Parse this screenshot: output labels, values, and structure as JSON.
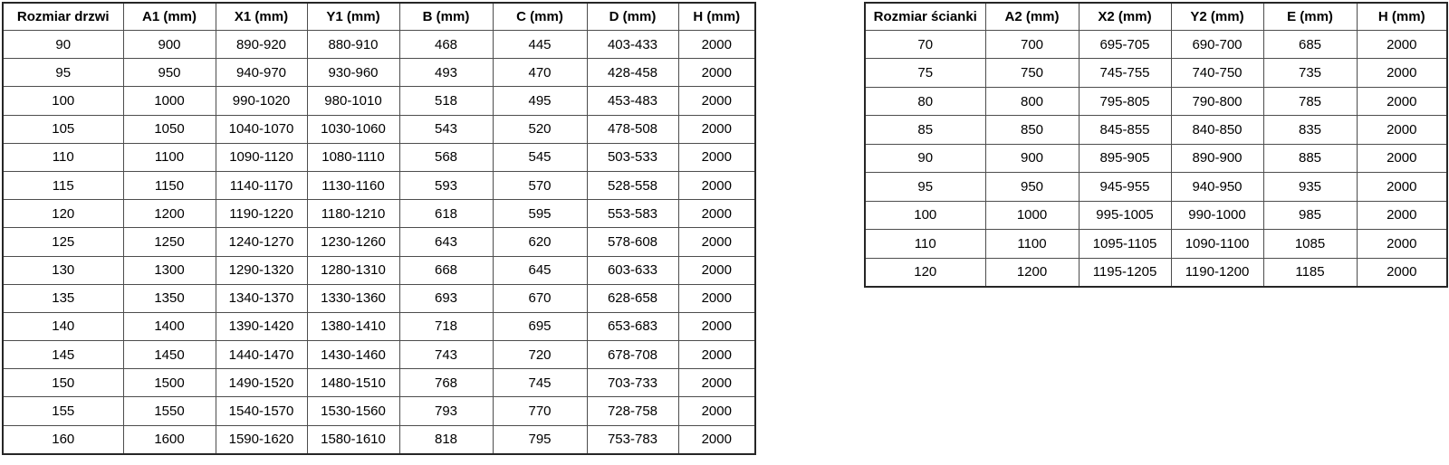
{
  "page": {
    "background_color": "#ffffff",
    "border_color": "#4d4d4d",
    "text_color": "#000000"
  },
  "tables": [
    {
      "name": "door-size-table",
      "headers": [
        "Rozmiar drzwi",
        "A1 (mm)",
        "X1 (mm)",
        "Y1 (mm)",
        "B (mm)",
        "C (mm)",
        "D (mm)",
        "H (mm)"
      ],
      "rows": [
        [
          "90",
          "900",
          "890-920",
          "880-910",
          "468",
          "445",
          "403-433",
          "2000"
        ],
        [
          "95",
          "950",
          "940-970",
          "930-960",
          "493",
          "470",
          "428-458",
          "2000"
        ],
        [
          "100",
          "1000",
          "990-1020",
          "980-1010",
          "518",
          "495",
          "453-483",
          "2000"
        ],
        [
          "105",
          "1050",
          "1040-1070",
          "1030-1060",
          "543",
          "520",
          "478-508",
          "2000"
        ],
        [
          "110",
          "1100",
          "1090-1120",
          "1080-1110",
          "568",
          "545",
          "503-533",
          "2000"
        ],
        [
          "115",
          "1150",
          "1140-1170",
          "1130-1160",
          "593",
          "570",
          "528-558",
          "2000"
        ],
        [
          "120",
          "1200",
          "1190-1220",
          "1180-1210",
          "618",
          "595",
          "553-583",
          "2000"
        ],
        [
          "125",
          "1250",
          "1240-1270",
          "1230-1260",
          "643",
          "620",
          "578-608",
          "2000"
        ],
        [
          "130",
          "1300",
          "1290-1320",
          "1280-1310",
          "668",
          "645",
          "603-633",
          "2000"
        ],
        [
          "135",
          "1350",
          "1340-1370",
          "1330-1360",
          "693",
          "670",
          "628-658",
          "2000"
        ],
        [
          "140",
          "1400",
          "1390-1420",
          "1380-1410",
          "718",
          "695",
          "653-683",
          "2000"
        ],
        [
          "145",
          "1450",
          "1440-1470",
          "1430-1460",
          "743",
          "720",
          "678-708",
          "2000"
        ],
        [
          "150",
          "1500",
          "1490-1520",
          "1480-1510",
          "768",
          "745",
          "703-733",
          "2000"
        ],
        [
          "155",
          "1550",
          "1540-1570",
          "1530-1560",
          "793",
          "770",
          "728-758",
          "2000"
        ],
        [
          "160",
          "1600",
          "1590-1620",
          "1580-1610",
          "818",
          "795",
          "753-783",
          "2000"
        ]
      ]
    },
    {
      "name": "wall-panel-size-table",
      "headers": [
        "Rozmiar ścianki",
        "A2 (mm)",
        "X2 (mm)",
        "Y2 (mm)",
        "E (mm)",
        "H (mm)"
      ],
      "rows": [
        [
          "70",
          "700",
          "695-705",
          "690-700",
          "685",
          "2000"
        ],
        [
          "75",
          "750",
          "745-755",
          "740-750",
          "735",
          "2000"
        ],
        [
          "80",
          "800",
          "795-805",
          "790-800",
          "785",
          "2000"
        ],
        [
          "85",
          "850",
          "845-855",
          "840-850",
          "835",
          "2000"
        ],
        [
          "90",
          "900",
          "895-905",
          "890-900",
          "885",
          "2000"
        ],
        [
          "95",
          "950",
          "945-955",
          "940-950",
          "935",
          "2000"
        ],
        [
          "100",
          "1000",
          "995-1005",
          "990-1000",
          "985",
          "2000"
        ],
        [
          "110",
          "1100",
          "1095-1105",
          "1090-1100",
          "1085",
          "2000"
        ],
        [
          "120",
          "1200",
          "1195-1205",
          "1190-1200",
          "1185",
          "2000"
        ]
      ]
    }
  ]
}
